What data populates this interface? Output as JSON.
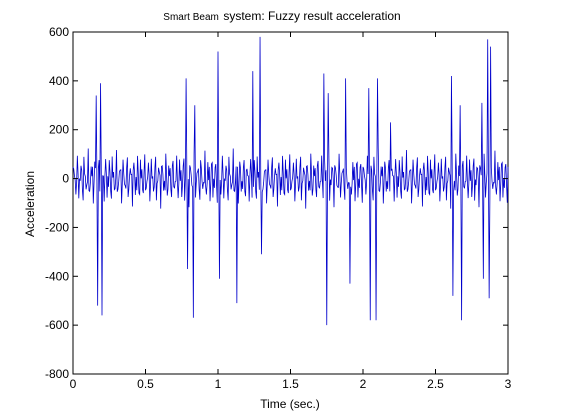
{
  "chart_data": {
    "type": "line",
    "title_small": "Smart Beam",
    "title_main": "system: Fuzzy result acceleration",
    "xlabel": "Time (sec.)",
    "ylabel": "Acceleration",
    "xlim": [
      0,
      3
    ],
    "ylim": [
      -800,
      600
    ],
    "xticks": [
      0,
      0.5,
      1,
      1.5,
      2,
      2.5,
      3
    ],
    "xtick_labels": [
      "0",
      "0.5",
      "1",
      "1.5",
      "2",
      "2.5",
      "3"
    ],
    "yticks": [
      -800,
      -600,
      -400,
      -200,
      0,
      200,
      400,
      600
    ],
    "ytick_labels": [
      "-800",
      "-600",
      "-400",
      "-200",
      "0",
      "200",
      "400",
      "600"
    ],
    "grid": false,
    "line_color": "#0000cc",
    "series": [
      {
        "sample_interval": 0.005,
        "peaks": [
          {
            "t": 0.16,
            "v": 340
          },
          {
            "t": 0.17,
            "v": -520
          },
          {
            "t": 0.19,
            "v": 390
          },
          {
            "t": 0.2,
            "v": -560
          },
          {
            "t": 0.78,
            "v": 410
          },
          {
            "t": 0.79,
            "v": -370
          },
          {
            "t": 0.84,
            "v": 300
          },
          {
            "t": 0.83,
            "v": -570
          },
          {
            "t": 1.0,
            "v": 520
          },
          {
            "t": 1.01,
            "v": -410
          },
          {
            "t": 1.13,
            "v": -510
          },
          {
            "t": 1.24,
            "v": 440
          },
          {
            "t": 1.29,
            "v": 580
          },
          {
            "t": 1.3,
            "v": -310
          },
          {
            "t": 1.73,
            "v": 430
          },
          {
            "t": 1.75,
            "v": -600
          },
          {
            "t": 1.76,
            "v": 350
          },
          {
            "t": 1.88,
            "v": 410
          },
          {
            "t": 1.91,
            "v": -430
          },
          {
            "t": 2.04,
            "v": 370
          },
          {
            "t": 2.05,
            "v": -580
          },
          {
            "t": 2.09,
            "v": -580
          },
          {
            "t": 2.1,
            "v": 410
          },
          {
            "t": 2.19,
            "v": 230
          },
          {
            "t": 2.61,
            "v": 420
          },
          {
            "t": 2.62,
            "v": -480
          },
          {
            "t": 2.67,
            "v": 300
          },
          {
            "t": 2.68,
            "v": -580
          },
          {
            "t": 2.82,
            "v": 310
          },
          {
            "t": 2.83,
            "v": -410
          },
          {
            "t": 2.86,
            "v": 570
          },
          {
            "t": 2.87,
            "v": -490
          },
          {
            "t": 2.88,
            "v": 540
          }
        ],
        "base_amplitude": 110
      }
    ]
  }
}
